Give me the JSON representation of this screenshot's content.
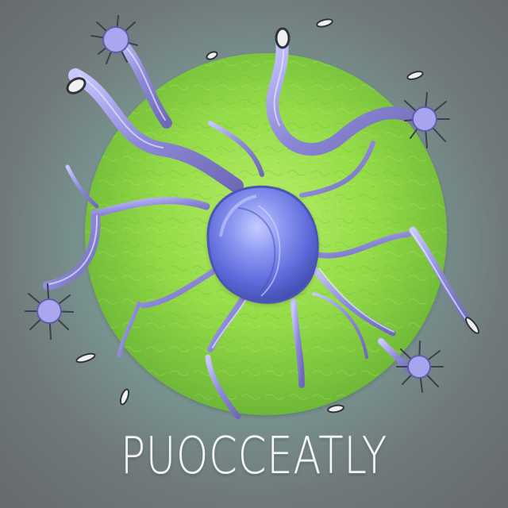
{
  "caption": {
    "text": "PUOCCEATLY"
  },
  "colors": {
    "background": "#6f7374",
    "background_glow": "#7fb3a6",
    "cell_body": "#8cd84a",
    "cell_body_light": "#b8ee68",
    "nucleus": "#5f6fe0",
    "nucleus_highlight": "#b7c0ff",
    "tendril": "#8f8ad9",
    "tendril_light": "#d7dcff",
    "text": "#f4f7f8"
  }
}
